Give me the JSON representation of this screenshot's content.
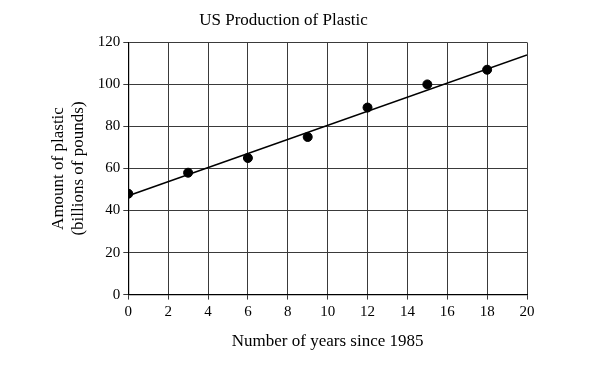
{
  "chart_data": {
    "type": "scatter",
    "title": "US Production of Plastic",
    "x_label": "Number of years since 1985",
    "y_label": [
      "Amount of plastic",
      "(billions of pounds)"
    ],
    "xlim": [
      0,
      20
    ],
    "xticks": [
      0,
      2,
      4,
      6,
      8,
      10,
      12,
      14,
      16,
      18,
      20
    ],
    "ylim": [
      0,
      120
    ],
    "yticks": [
      0,
      20,
      40,
      60,
      80,
      100,
      120
    ],
    "grid": true,
    "series": [
      {
        "type": "scatter",
        "color": "#000000",
        "marker": "circle",
        "x": [
          0,
          3,
          6,
          9,
          12,
          15,
          18
        ],
        "values": [
          48,
          58,
          65,
          75,
          89,
          100,
          107
        ]
      },
      {
        "type": "line",
        "color": "#000000",
        "line_style": "solid",
        "x": [
          0,
          20
        ],
        "values": [
          47,
          114
        ]
      }
    ]
  }
}
